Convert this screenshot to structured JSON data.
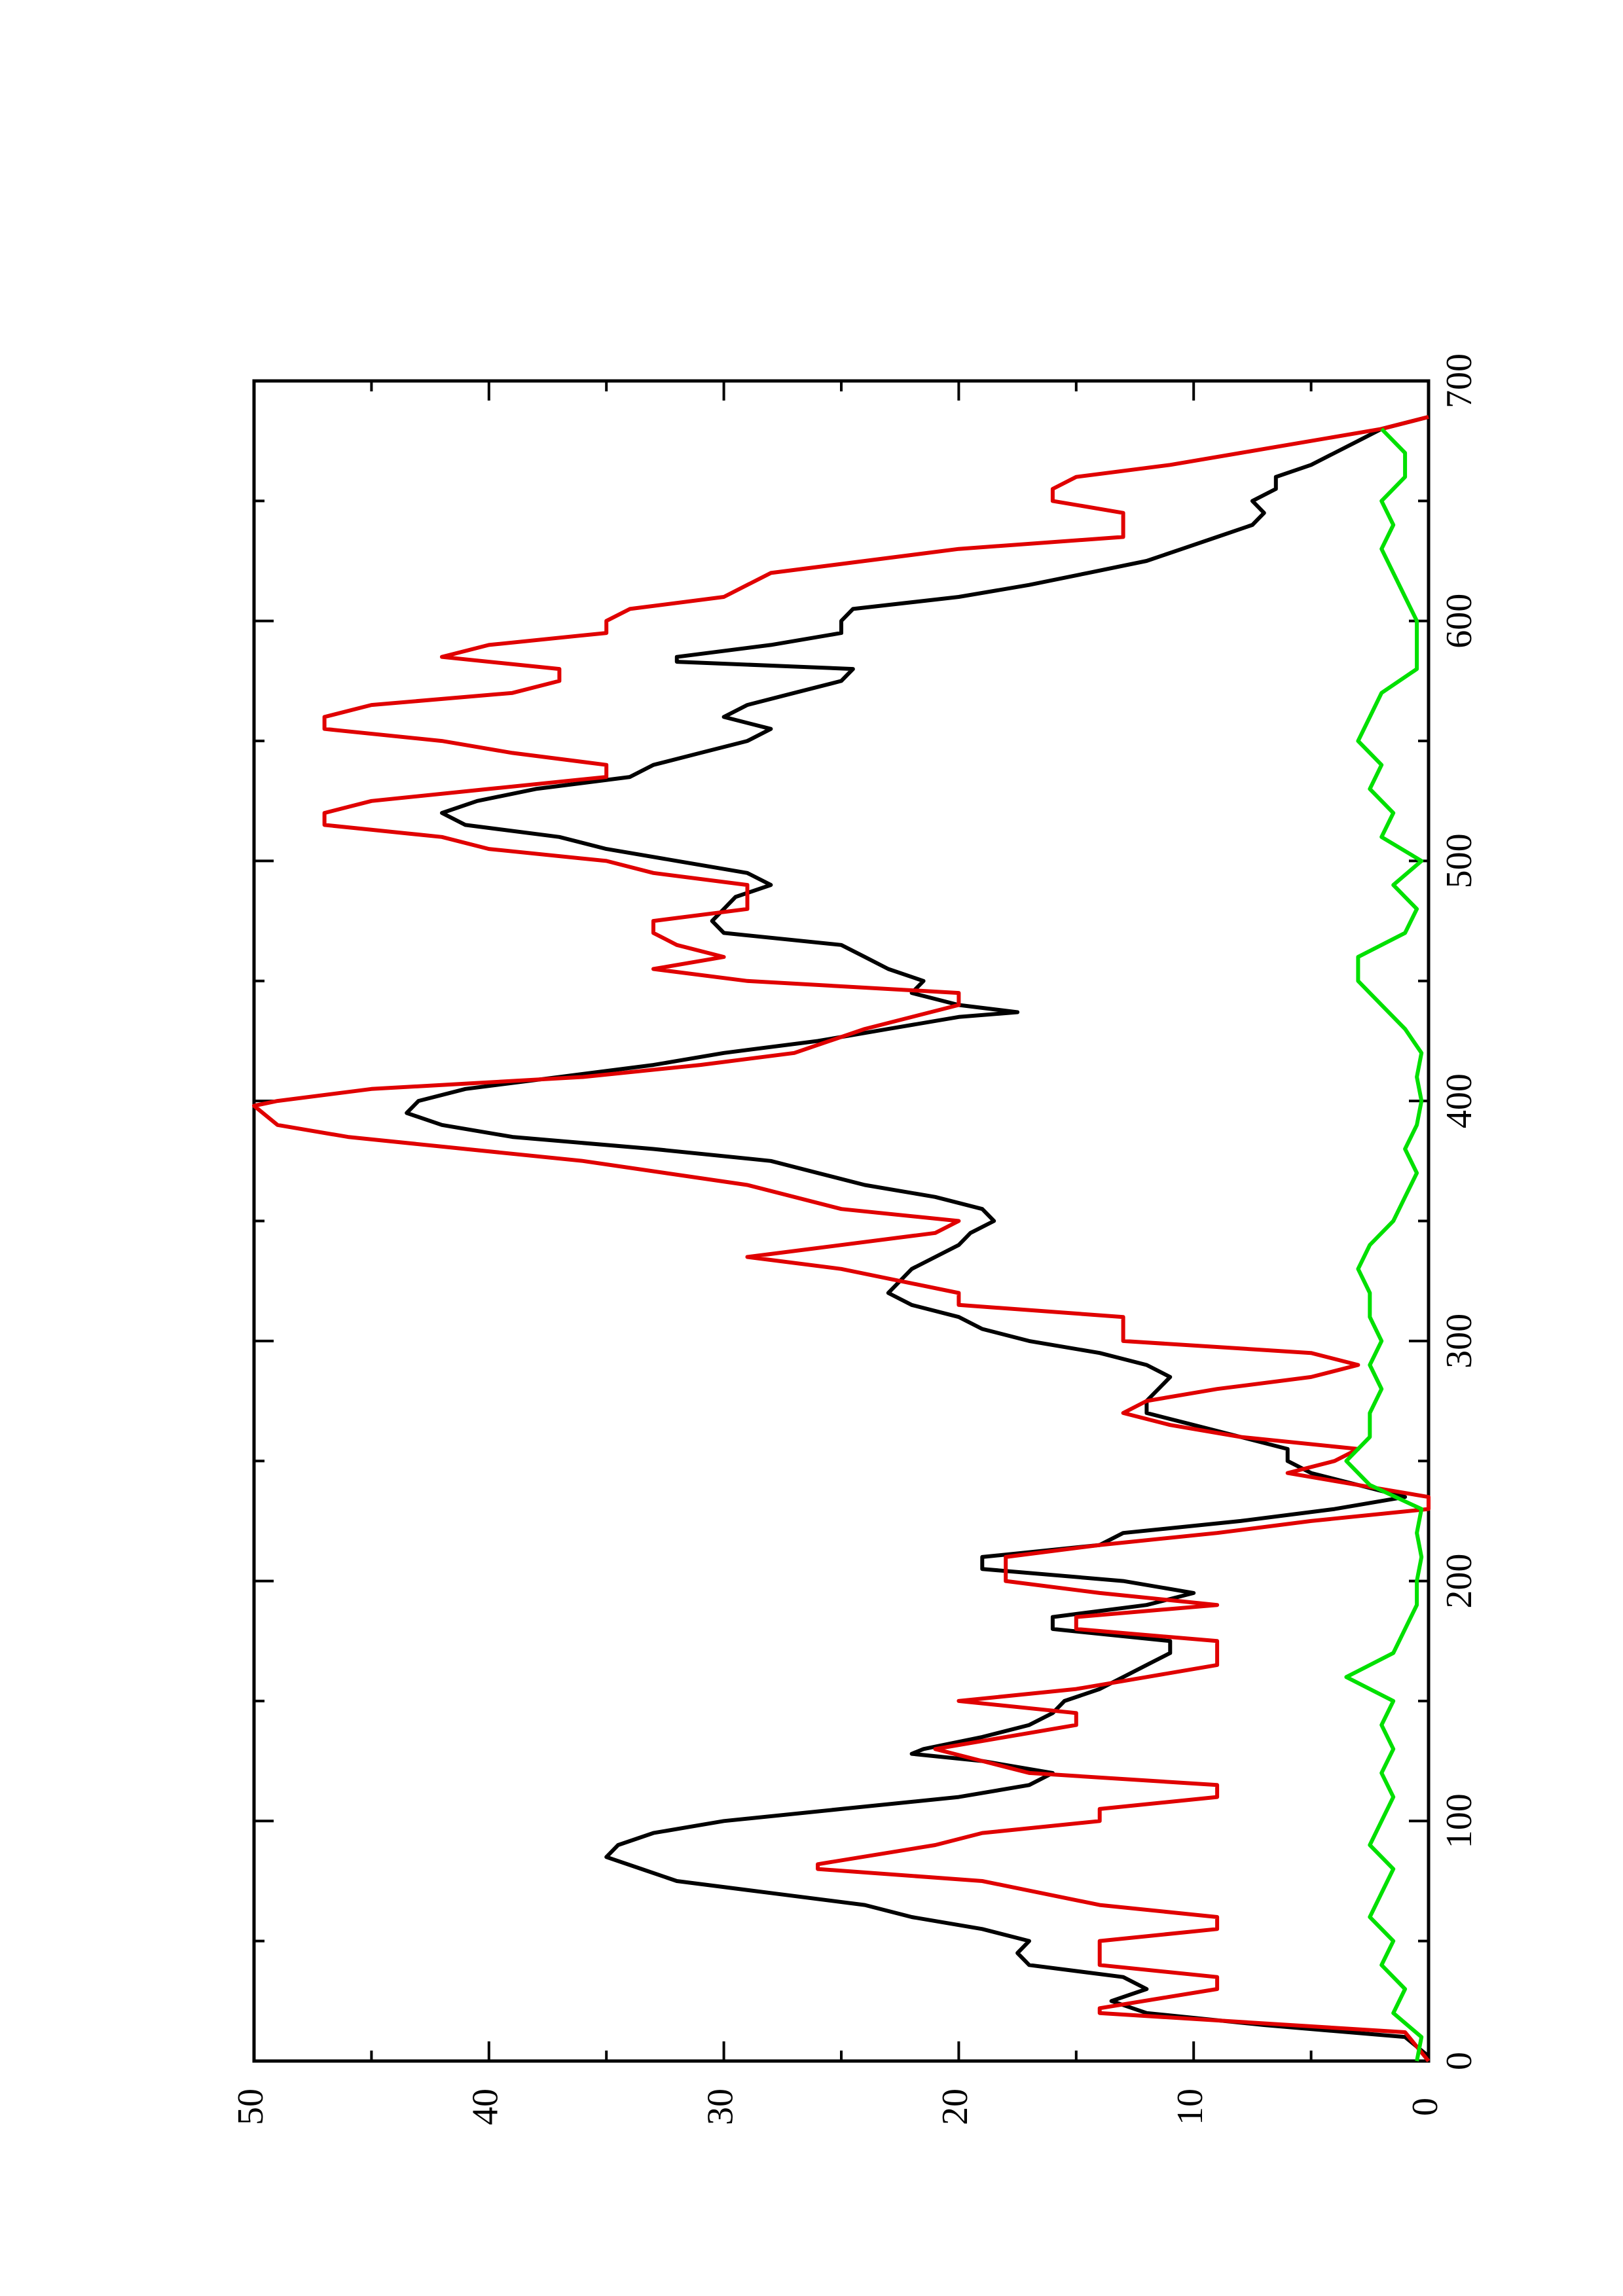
{
  "chart_data": {
    "type": "line",
    "orientation": "rotated-90",
    "xlim": [
      0,
      700
    ],
    "xticks": [
      0,
      100,
      200,
      300,
      400,
      500,
      600,
      700
    ],
    "xminorticks": [
      50,
      150,
      250,
      350,
      450,
      550,
      650
    ],
    "ylim": [
      0,
      50
    ],
    "yticks": [
      0,
      10,
      20,
      30,
      40,
      50
    ],
    "yminorticks": [
      5,
      15,
      25,
      35,
      45
    ],
    "series": [
      {
        "color": "#000000",
        "x": [
          2,
          10,
          15,
          20,
          25,
          30,
          35,
          40,
          45,
          50,
          55,
          60,
          65,
          70,
          75,
          80,
          85,
          90,
          95,
          100,
          105,
          110,
          115,
          120,
          125,
          128,
          130,
          135,
          140,
          145,
          150,
          155,
          160,
          165,
          170,
          175,
          180,
          185,
          190,
          195,
          200,
          205,
          210,
          215,
          220,
          225,
          230,
          235,
          240,
          245,
          250,
          255,
          260,
          265,
          270,
          275,
          280,
          285,
          290,
          295,
          300,
          305,
          310,
          315,
          320,
          325,
          330,
          335,
          340,
          345,
          350,
          355,
          360,
          365,
          370,
          375,
          380,
          385,
          390,
          395,
          400,
          405,
          410,
          415,
          420,
          425,
          430,
          435,
          437,
          440,
          445,
          450,
          455,
          460,
          465,
          470,
          475,
          480,
          485,
          490,
          495,
          500,
          505,
          510,
          515,
          520,
          525,
          530,
          535,
          540,
          545,
          550,
          555,
          560,
          565,
          570,
          575,
          580,
          583,
          585,
          590,
          595,
          600,
          605,
          610,
          615,
          620,
          625,
          630,
          635,
          640,
          645,
          650,
          655,
          660,
          665,
          670,
          675,
          680,
          685
        ],
        "values": [
          0,
          1,
          7,
          12,
          13.5,
          12,
          13,
          17,
          17.5,
          17,
          19,
          22,
          24,
          28,
          32,
          33.5,
          35,
          34.5,
          33,
          30,
          25,
          20,
          17,
          16,
          19,
          22,
          21.5,
          19,
          17,
          16,
          15.5,
          14,
          13,
          12,
          11,
          11,
          16,
          16,
          12,
          10,
          13,
          19,
          19,
          14,
          13,
          8,
          4,
          1,
          3,
          5,
          6,
          6,
          8,
          10,
          12,
          12,
          11.5,
          11,
          12,
          14,
          17,
          19,
          20,
          22,
          23,
          22.5,
          22,
          21,
          20,
          19.5,
          18.5,
          19,
          21,
          24,
          26,
          28,
          33,
          39,
          42,
          43.5,
          43,
          41,
          37,
          33,
          30,
          26,
          23,
          20,
          17.5,
          20,
          22,
          21.5,
          23,
          24,
          25,
          30,
          30.5,
          30,
          29.5,
          28,
          29,
          32,
          35,
          37,
          41,
          42,
          40.5,
          38,
          34,
          33,
          31,
          29,
          28,
          30,
          29,
          27,
          25,
          24.5,
          32,
          32,
          28,
          25,
          25,
          24.5,
          20,
          17,
          14.5,
          12,
          10.5,
          9,
          7.5,
          7,
          7.5,
          6.5,
          6.5,
          5,
          4,
          3,
          2,
          0
        ]
      },
      {
        "color": "#e00000",
        "x": [
          0,
          12,
          20,
          22,
          30,
          32,
          35,
          40,
          50,
          55,
          60,
          65,
          75,
          80,
          82,
          90,
          95,
          100,
          105,
          110,
          115,
          120,
          125,
          130,
          135,
          140,
          145,
          150,
          155,
          160,
          165,
          175,
          180,
          185,
          190,
          195,
          200,
          210,
          215,
          220,
          225,
          230,
          235,
          240,
          245,
          250,
          255,
          260,
          265,
          270,
          275,
          280,
          285,
          290,
          295,
          300,
          310,
          315,
          320,
          330,
          335,
          340,
          345,
          350,
          355,
          360,
          365,
          375,
          380,
          385,
          390,
          398,
          400,
          405,
          410,
          415,
          420,
          430,
          440,
          445,
          450,
          455,
          460,
          465,
          470,
          475,
          480,
          490,
          495,
          500,
          505,
          510,
          515,
          520,
          525,
          530,
          535,
          540,
          545,
          550,
          555,
          560,
          565,
          570,
          575,
          580,
          585,
          590,
          595,
          600,
          605,
          610,
          620,
          630,
          635,
          645,
          650,
          655,
          660,
          665,
          670,
          675,
          680,
          685
        ],
        "values": [
          0,
          1,
          14,
          14,
          9,
          9,
          9,
          14,
          14,
          9,
          9,
          14,
          19,
          26,
          26,
          21,
          19,
          14,
          14,
          9,
          9,
          17,
          19,
          21,
          18,
          15,
          15,
          20,
          15,
          12,
          9,
          9,
          15,
          15,
          9,
          14,
          18,
          18,
          14,
          9,
          5,
          0,
          0,
          3,
          6,
          4,
          3,
          8,
          11,
          13,
          12,
          9,
          5,
          3,
          5,
          13,
          13,
          20,
          20,
          25,
          29,
          25,
          21,
          20,
          25,
          27,
          29,
          36,
          41,
          46,
          49,
          50,
          49,
          45,
          36,
          31,
          27,
          24,
          20,
          20,
          29,
          33,
          30,
          32,
          33,
          33,
          29,
          29,
          33,
          35,
          40,
          42,
          47,
          47,
          45,
          40,
          35,
          35,
          39,
          42,
          47,
          47,
          45,
          39,
          37,
          37,
          42,
          40,
          35,
          35,
          34,
          30,
          28,
          20,
          13,
          13,
          16,
          16,
          15,
          11,
          8,
          5,
          2,
          0
        ]
      },
      {
        "color": "#00e000",
        "x": [
          0,
          10,
          20,
          30,
          40,
          50,
          60,
          70,
          80,
          90,
          100,
          110,
          120,
          130,
          140,
          150,
          160,
          170,
          180,
          190,
          200,
          210,
          220,
          230,
          240,
          250,
          260,
          270,
          280,
          290,
          300,
          310,
          320,
          330,
          340,
          350,
          360,
          370,
          380,
          390,
          400,
          410,
          420,
          430,
          440,
          450,
          460,
          470,
          480,
          490,
          500,
          510,
          520,
          530,
          540,
          550,
          560,
          570,
          580,
          590,
          600,
          610,
          620,
          630,
          640,
          650,
          660,
          670,
          680
        ],
        "values": [
          0.5,
          0.3,
          1.5,
          1,
          2,
          1.5,
          2.5,
          2,
          1.5,
          2.5,
          2,
          1.5,
          2,
          1.5,
          2,
          1.5,
          3.5,
          1.5,
          1,
          0.5,
          0.5,
          0.3,
          0.5,
          0.3,
          2.5,
          3.5,
          2.5,
          2.5,
          2,
          2.5,
          2,
          2.5,
          2.5,
          3,
          2.5,
          1.5,
          1,
          0.5,
          1,
          0.5,
          0.3,
          0.5,
          0.3,
          1,
          2,
          3,
          3,
          1,
          0.5,
          1.5,
          0.3,
          2,
          1.5,
          2.5,
          2,
          3,
          2.5,
          2,
          0.5,
          0.5,
          0.5,
          1,
          1.5,
          2,
          1.5,
          2,
          1,
          1,
          2
        ]
      }
    ]
  }
}
